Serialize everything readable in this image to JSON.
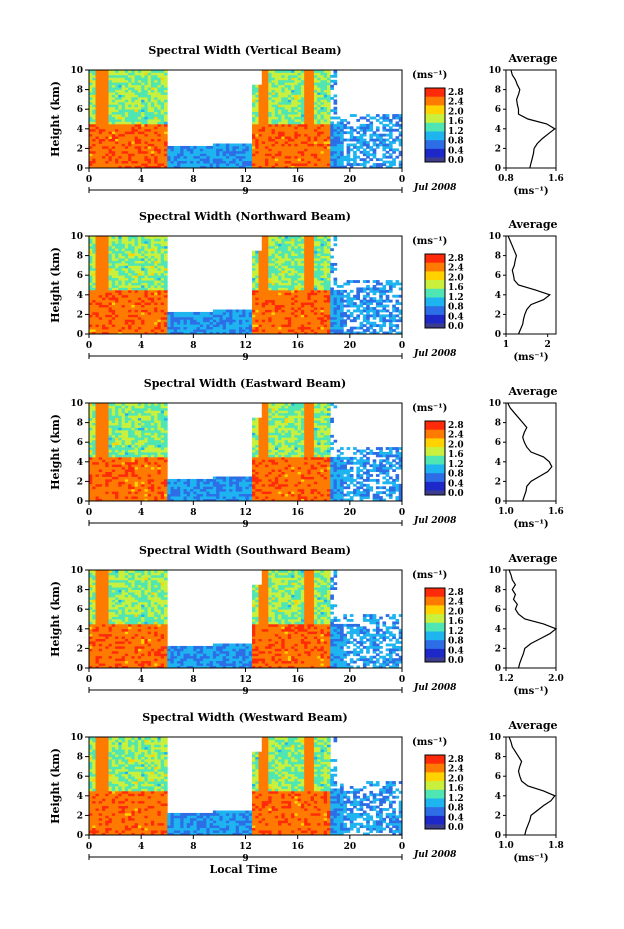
{
  "x_axis_title": "Local Time",
  "colorbar": {
    "unit_label": "(ms⁻¹)",
    "tick_labels": [
      "2.8",
      "2.4",
      "2.0",
      "1.6",
      "1.2",
      "0.8",
      "0.4",
      "0.0"
    ],
    "colors": [
      "#ff2a0a",
      "#ff7a00",
      "#ffd200",
      "#c8f03c",
      "#50e6b4",
      "#1eb4f0",
      "#2d6ee6",
      "#1e28c8",
      "#3c3c8c"
    ]
  },
  "chart_data": [
    {
      "type": "heatmap",
      "title": "Spectral Width (Vertical Beam)",
      "ylabel": "Height (km)",
      "xlabel": "",
      "x_ticks": [
        "0",
        "4",
        "8",
        "12",
        "16",
        "20",
        "0"
      ],
      "y_ticks": [
        "10",
        "8",
        "6",
        "4",
        "2",
        "0"
      ],
      "date_marker": "9",
      "date_label": "Jul 2008",
      "xlim": [
        0,
        24
      ],
      "ylim": [
        0,
        10
      ],
      "profile": {
        "title": "Average",
        "xlabel": "(ms⁻¹)",
        "x_ticks": [
          "0.8",
          "1.6"
        ],
        "xlim": [
          0.8,
          1.6
        ],
        "heights": [
          0,
          0.5,
          1,
          1.5,
          2,
          2.5,
          3,
          3.5,
          4,
          4.5,
          5,
          5.5,
          6,
          6.5,
          7,
          7.5,
          8,
          8.5,
          9,
          9.5,
          10
        ],
        "values": [
          1.18,
          1.2,
          1.22,
          1.24,
          1.25,
          1.3,
          1.38,
          1.48,
          1.58,
          1.45,
          1.15,
          1.0,
          1.0,
          0.98,
          0.97,
          1.0,
          1.02,
          0.98,
          0.95,
          0.9,
          0.88
        ]
      }
    },
    {
      "type": "heatmap",
      "title": "Spectral Width (Northward Beam)",
      "ylabel": "Height (km)",
      "xlabel": "",
      "x_ticks": [
        "0",
        "4",
        "8",
        "12",
        "16",
        "20",
        "0"
      ],
      "y_ticks": [
        "10",
        "8",
        "6",
        "4",
        "2",
        "0"
      ],
      "date_marker": "9",
      "date_label": "Jul 2008",
      "xlim": [
        0,
        24
      ],
      "ylim": [
        0,
        10
      ],
      "profile": {
        "title": "Average",
        "xlabel": "(ms⁻¹)",
        "x_ticks": [
          "1",
          "2"
        ],
        "xlim": [
          1.0,
          2.2
        ],
        "heights": [
          0,
          0.5,
          1,
          1.5,
          2,
          2.5,
          3,
          3.5,
          4,
          4.5,
          5,
          5.5,
          6,
          6.5,
          7,
          7.5,
          8,
          8.5,
          9,
          9.5,
          10
        ],
        "values": [
          1.3,
          1.35,
          1.4,
          1.42,
          1.45,
          1.5,
          1.6,
          1.9,
          2.05,
          1.7,
          1.3,
          1.2,
          1.18,
          1.15,
          1.2,
          1.22,
          1.25,
          1.2,
          1.15,
          1.1,
          1.05
        ]
      }
    },
    {
      "type": "heatmap",
      "title": "Spectral Width (Eastward Beam)",
      "ylabel": "Height (km)",
      "xlabel": "",
      "x_ticks": [
        "0",
        "4",
        "8",
        "12",
        "16",
        "20",
        "0"
      ],
      "y_ticks": [
        "10",
        "8",
        "6",
        "4",
        "2",
        "0"
      ],
      "date_marker": "9",
      "date_label": "Jul 2008",
      "xlim": [
        0,
        24
      ],
      "ylim": [
        0,
        10
      ],
      "profile": {
        "title": "Average",
        "xlabel": "(ms⁻¹)",
        "x_ticks": [
          "1.0",
          "1.6"
        ],
        "xlim": [
          1.0,
          1.6
        ],
        "heights": [
          0,
          0.5,
          1,
          1.5,
          2,
          2.5,
          3,
          3.5,
          4,
          4.5,
          5,
          5.5,
          6,
          6.5,
          7,
          7.5,
          8,
          8.5,
          9,
          9.5,
          10
        ],
        "values": [
          1.2,
          1.22,
          1.24,
          1.25,
          1.3,
          1.4,
          1.5,
          1.55,
          1.52,
          1.45,
          1.3,
          1.25,
          1.22,
          1.2,
          1.22,
          1.25,
          1.2,
          1.15,
          1.1,
          1.05,
          1.02
        ]
      }
    },
    {
      "type": "heatmap",
      "title": "Spectral Width (Southward Beam)",
      "ylabel": "Height (km)",
      "xlabel": "",
      "x_ticks": [
        "0",
        "4",
        "8",
        "12",
        "16",
        "20",
        "0"
      ],
      "y_ticks": [
        "10",
        "8",
        "6",
        "4",
        "2",
        "0"
      ],
      "date_marker": "9",
      "date_label": "Jul 2008",
      "xlim": [
        0,
        24
      ],
      "ylim": [
        0,
        10
      ],
      "profile": {
        "title": "Average",
        "xlabel": "(ms⁻¹)",
        "x_ticks": [
          "1.2",
          "2.0"
        ],
        "xlim": [
          1.2,
          2.0
        ],
        "heights": [
          0,
          0.5,
          1,
          1.5,
          2,
          2.5,
          3,
          3.5,
          4,
          4.5,
          5,
          5.5,
          6,
          6.5,
          7,
          7.5,
          8,
          8.5,
          9,
          9.5,
          10
        ],
        "values": [
          1.4,
          1.42,
          1.45,
          1.48,
          1.5,
          1.6,
          1.75,
          1.9,
          2.0,
          1.8,
          1.5,
          1.4,
          1.35,
          1.38,
          1.32,
          1.35,
          1.3,
          1.35,
          1.3,
          1.28,
          1.25
        ]
      }
    },
    {
      "type": "heatmap",
      "title": "Spectral Width (Westward Beam)",
      "ylabel": "Height (km)",
      "xlabel": "Local Time",
      "x_ticks": [
        "0",
        "4",
        "8",
        "12",
        "16",
        "20",
        "0"
      ],
      "y_ticks": [
        "10",
        "8",
        "6",
        "4",
        "2",
        "0"
      ],
      "date_marker": "9",
      "date_label": "Jul 2008",
      "xlim": [
        0,
        24
      ],
      "ylim": [
        0,
        10
      ],
      "profile": {
        "title": "Average",
        "xlabel": "(ms⁻¹)",
        "x_ticks": [
          "1.0",
          "1.8"
        ],
        "xlim": [
          1.0,
          1.8
        ],
        "heights": [
          0,
          0.5,
          1,
          1.5,
          2,
          2.5,
          3,
          3.5,
          4,
          4.5,
          5,
          5.5,
          6,
          6.5,
          7,
          7.5,
          8,
          8.5,
          9,
          9.5,
          10
        ],
        "values": [
          1.3,
          1.32,
          1.35,
          1.38,
          1.4,
          1.5,
          1.6,
          1.72,
          1.78,
          1.6,
          1.35,
          1.25,
          1.22,
          1.2,
          1.22,
          1.25,
          1.2,
          1.15,
          1.1,
          1.08,
          1.05
        ]
      }
    }
  ]
}
